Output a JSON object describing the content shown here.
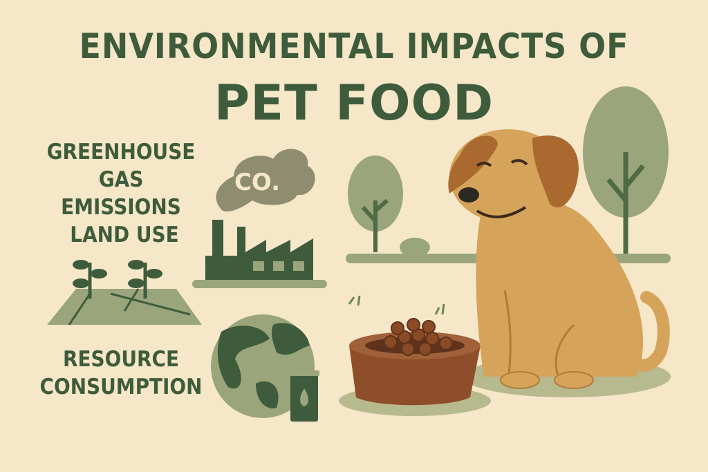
{
  "title": {
    "line1": "ENVIRONMENTAL IMPACTS OF",
    "line2": "PET FOOD"
  },
  "sections": [
    {
      "label": "GREENHOUSE GAS EMISSIONS",
      "label_lines": [
        "GREENHOUSE",
        "GAS EMISSIONS"
      ],
      "icon": "factory-co2-icon"
    },
    {
      "label": "LAND USE",
      "label_lines": [
        "LAND USE"
      ],
      "icon": "farmland-sprouts-icon"
    },
    {
      "label": "RESOURCE CONSUMPTION",
      "label_lines": [
        "RESOURCE",
        "CONSUMPTION"
      ],
      "icon": "globe-oil-can-icon"
    }
  ],
  "cloud_text": "CO.",
  "colors": {
    "background": "#f6e7c9",
    "dark_green": "#3e5c3b",
    "sage": "#8f9a72",
    "dog": "#d6a35a",
    "dog_ear": "#a9692f",
    "bowl": "#8e4e2a"
  }
}
